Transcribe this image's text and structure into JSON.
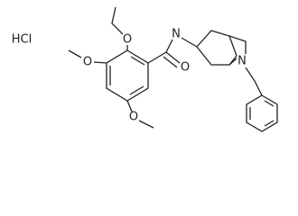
{
  "atoms": [
    "HCl",
    "N",
    "O",
    "O",
    "O",
    "O",
    "N"
  ]
}
